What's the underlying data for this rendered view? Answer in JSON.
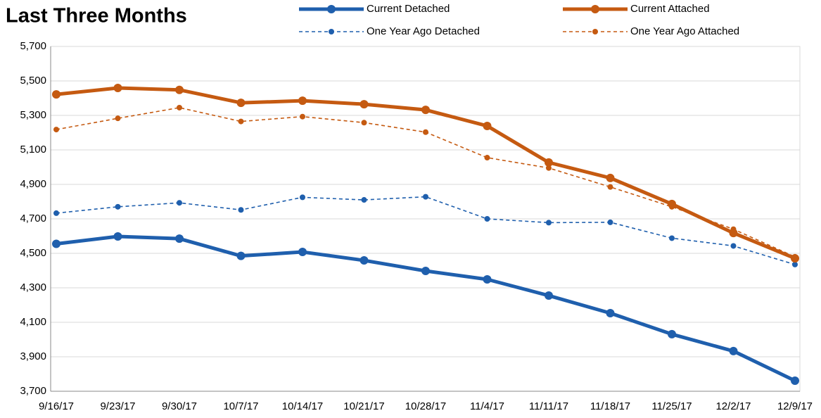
{
  "chart_data": {
    "type": "line",
    "title": "Last Three Months",
    "categories": [
      "9/16/17",
      "9/23/17",
      "9/30/17",
      "10/7/17",
      "10/14/17",
      "10/21/17",
      "10/28/17",
      "11/4/17",
      "11/11/17",
      "11/18/17",
      "11/25/17",
      "12/2/17",
      "12/9/17"
    ],
    "series": [
      {
        "name": "Current Detached",
        "color": "#1f5fad",
        "dashed": false,
        "values": [
          4555,
          4598,
          4585,
          4485,
          4508,
          4459,
          4398,
          4349,
          4255,
          4153,
          4031,
          3933,
          3761
        ]
      },
      {
        "name": "Current Attached",
        "color": "#c55a11",
        "dashed": false,
        "values": [
          5422,
          5459,
          5448,
          5373,
          5385,
          5365,
          5332,
          5239,
          5027,
          4937,
          4786,
          4618,
          4471
        ]
      },
      {
        "name": "One Year Ago Detached",
        "color": "#1f5fad",
        "dashed": true,
        "values": [
          4733,
          4770,
          4793,
          4752,
          4825,
          4810,
          4828,
          4700,
          4678,
          4680,
          4588,
          4543,
          4435
        ]
      },
      {
        "name": "One Year Ago Attached",
        "color": "#c55a11",
        "dashed": true,
        "values": [
          5218,
          5283,
          5345,
          5265,
          5293,
          5258,
          5203,
          5055,
          4995,
          4885,
          4770,
          4640,
          4480
        ]
      }
    ],
    "ylim": [
      3700,
      5700
    ],
    "yticks": [
      {
        "value": 3700,
        "label": "3,700"
      },
      {
        "value": 3900,
        "label": "3,900"
      },
      {
        "value": 4100,
        "label": "4,100"
      },
      {
        "value": 4300,
        "label": "4,300"
      },
      {
        "value": 4500,
        "label": "4,500"
      },
      {
        "value": 4700,
        "label": "4,700"
      },
      {
        "value": 4900,
        "label": "4,900"
      },
      {
        "value": 5100,
        "label": "5,100"
      },
      {
        "value": 5300,
        "label": "5,300"
      },
      {
        "value": 5500,
        "label": "5,500"
      },
      {
        "value": 5700,
        "label": "5,700"
      }
    ],
    "grid": true
  }
}
